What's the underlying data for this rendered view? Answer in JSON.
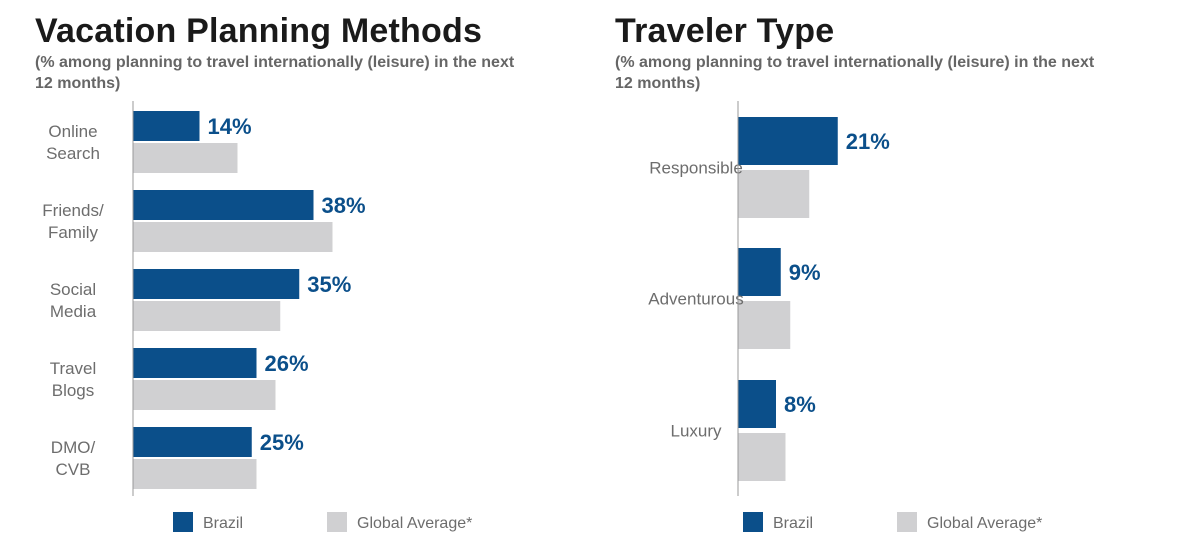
{
  "colors": {
    "brazil": "#0b4f8a",
    "global": "#d0d0d2",
    "axis": "#999999",
    "label": "#6d6d6d"
  },
  "chart_data": [
    {
      "type": "bar",
      "orientation": "horizontal",
      "title": "Vacation Planning Methods",
      "subtitle": "(% among planning to travel internationally (leisure) in the next 12 months)",
      "categories": [
        [
          "Online",
          "Search"
        ],
        [
          "Friends/",
          "Family"
        ],
        [
          "Social",
          "Media"
        ],
        [
          "Travel",
          "Blogs"
        ],
        [
          "DMO/",
          "CVB"
        ]
      ],
      "series": [
        {
          "name": "Brazil",
          "values": [
            14,
            38,
            35,
            26,
            25
          ],
          "labels": [
            "14%",
            "38%",
            "35%",
            "26%",
            "25%"
          ]
        },
        {
          "name": "Global Average*",
          "values": [
            22,
            42,
            31,
            30,
            26
          ]
        }
      ],
      "xlim": [
        0,
        100
      ],
      "grid": false,
      "legend": "bottom"
    },
    {
      "type": "bar",
      "orientation": "horizontal",
      "title": "Traveler Type",
      "subtitle": "(% among planning to travel internationally (leisure) in the next 12 months)",
      "categories": [
        [
          "Responsible"
        ],
        [
          "Adventurous"
        ],
        [
          "Luxury"
        ]
      ],
      "series": [
        {
          "name": "Brazil",
          "values": [
            21,
            9,
            8
          ],
          "labels": [
            "21%",
            "9%",
            "8%"
          ]
        },
        {
          "name": "Global Average*",
          "values": [
            15,
            11,
            10
          ]
        }
      ],
      "xlim": [
        0,
        100
      ],
      "grid": false,
      "legend": "bottom"
    }
  ]
}
